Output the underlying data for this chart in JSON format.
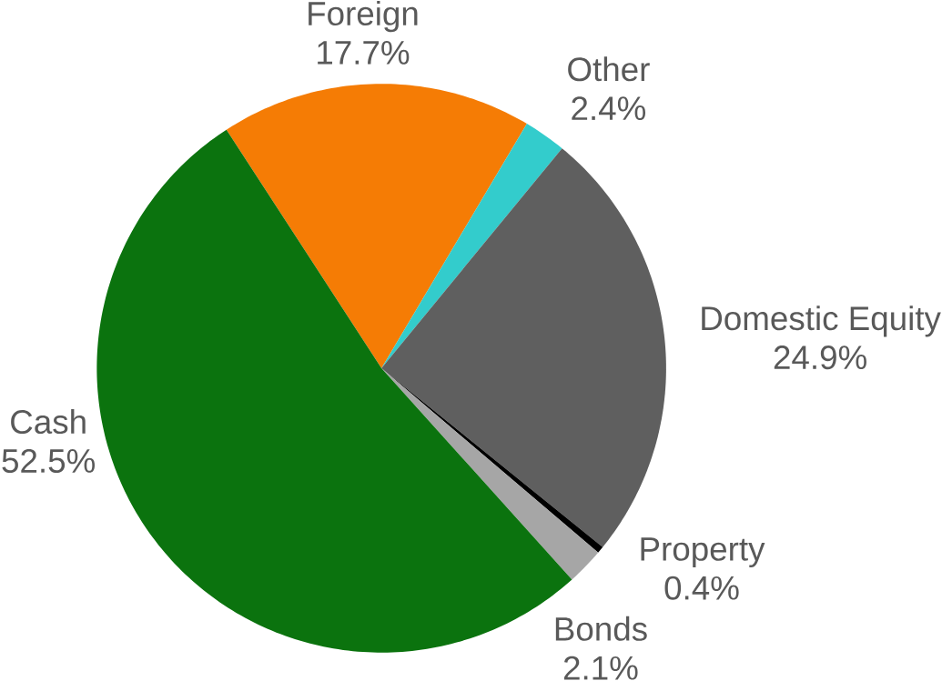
{
  "chart_data": {
    "type": "pie",
    "categories": [
      "Foreign",
      "Other",
      "Domestic Equity",
      "Property",
      "Bonds",
      "Cash"
    ],
    "values": [
      17.7,
      2.4,
      24.9,
      0.4,
      2.1,
      52.5
    ],
    "value_labels": [
      "17.7%",
      "2.4%",
      "24.9%",
      "0.4%",
      "2.1%",
      "52.5%"
    ],
    "colors": [
      "#f57c05",
      "#33cccc",
      "#5f5f5f",
      "#000000",
      "#a6a6a6",
      "#0b730e"
    ]
  }
}
